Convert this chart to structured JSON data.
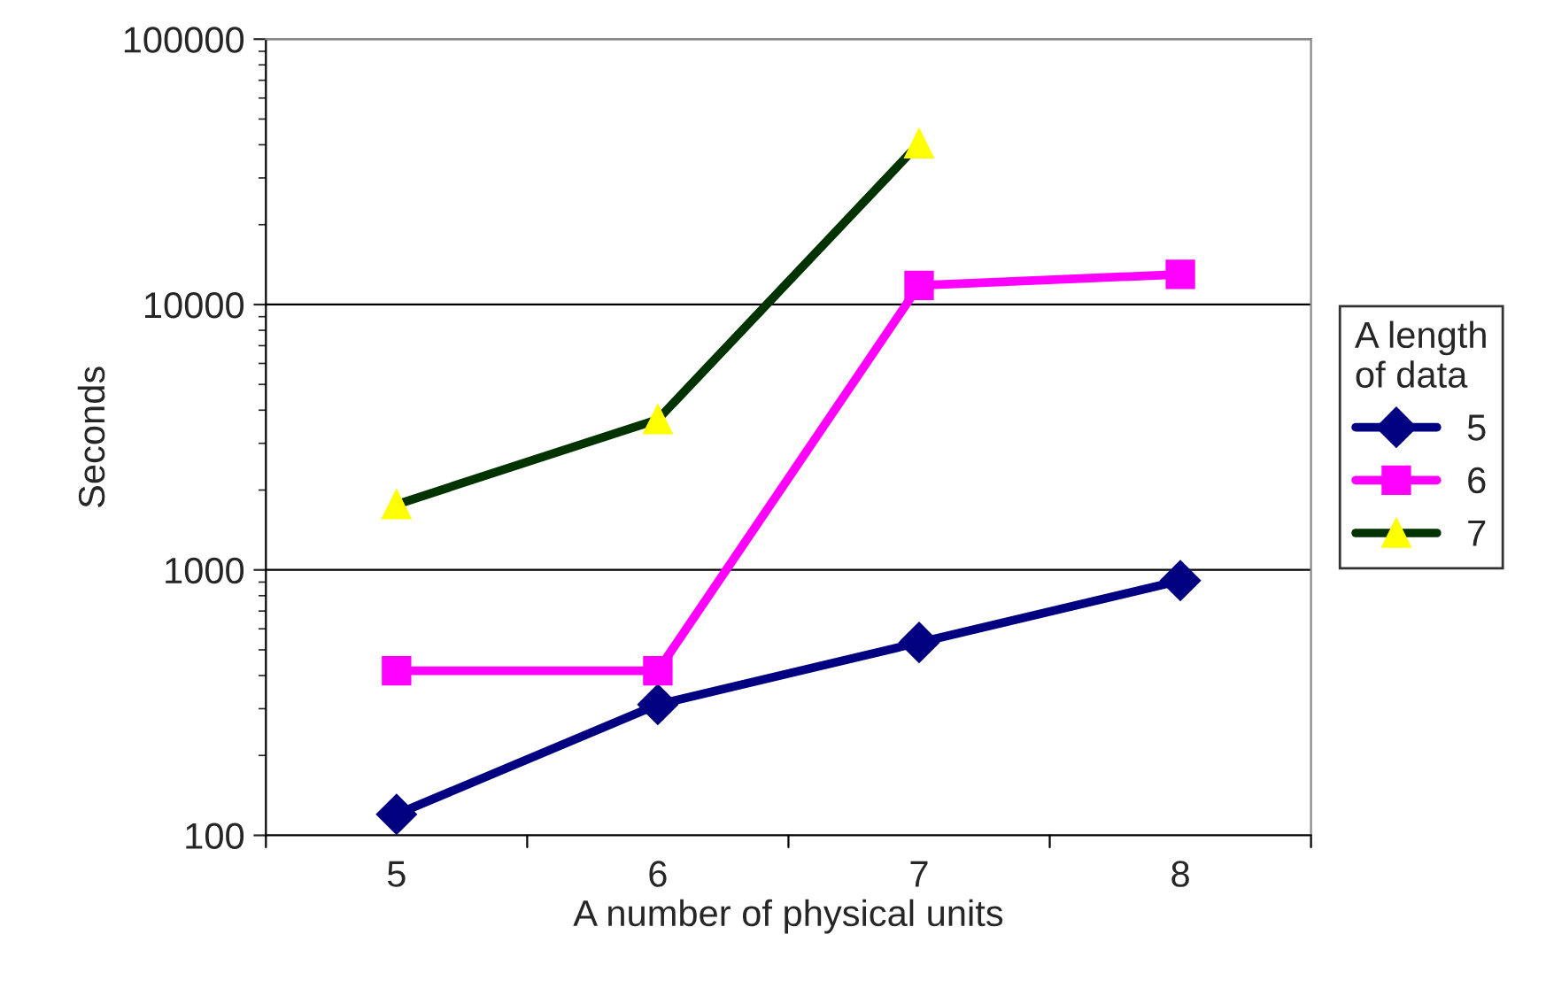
{
  "chart_data": {
    "type": "line",
    "xlabel": "A number of physical units",
    "ylabel": "Seconds",
    "legend_title": "A length\nof data",
    "categories": [
      "5",
      "6",
      "7",
      "8"
    ],
    "series": [
      {
        "name": "5",
        "color": "#000080",
        "marker": "diamond",
        "values": [
          120,
          311,
          533,
          912
        ]
      },
      {
        "name": "6",
        "color": "#ff00ff",
        "marker": "square",
        "values": [
          417,
          417,
          11800,
          13000
        ]
      },
      {
        "name": "7",
        "color": "#003300",
        "marker": "triangle",
        "colors": [
          "#ffff00",
          "#ffff00",
          "#ffff00",
          "#ffff00"
        ],
        "values": [
          1765,
          3690,
          40400,
          null
        ]
      }
    ],
    "log": "y",
    "ylim": [
      100,
      100000
    ],
    "yticks": [
      100,
      1000,
      10000,
      100000
    ],
    "grid": "y",
    "legend": "right",
    "line_style": "solid"
  }
}
